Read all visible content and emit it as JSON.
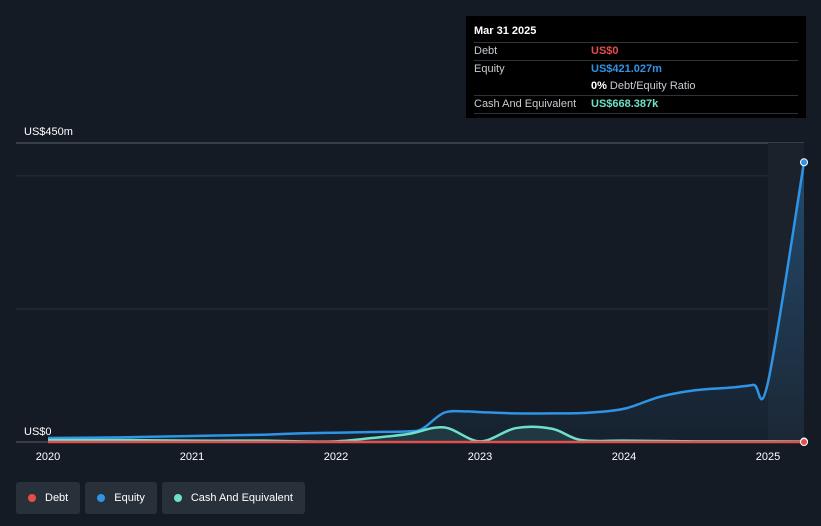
{
  "tooltip": {
    "date": "Mar 31 2025",
    "rows": [
      {
        "label": "Debt",
        "value": "US$0"
      },
      {
        "label": "Equity",
        "value": "US$421.027m"
      },
      {
        "label": "",
        "value": "0%",
        "extra": "Debt/Equity Ratio"
      },
      {
        "label": "Cash And Equivalent",
        "value": "US$668.387k"
      }
    ]
  },
  "legend": [
    {
      "label": "Debt",
      "color": "#e64d4d"
    },
    {
      "label": "Equity",
      "color": "#2f94e6"
    },
    {
      "label": "Cash And Equivalent",
      "color": "#6fe0c8"
    }
  ],
  "chart_data": {
    "type": "area",
    "y_axis_labels": [
      "US$450m",
      "US$0"
    ],
    "ylim": [
      0,
      450
    ],
    "y_unit": "US$m",
    "xlim": [
      2020.0,
      2025.25
    ],
    "x_ticks": [
      {
        "value": 2020,
        "label": "2020"
      },
      {
        "value": 2021,
        "label": "2021"
      },
      {
        "value": 2022,
        "label": "2022"
      },
      {
        "value": 2023,
        "label": "2023"
      },
      {
        "value": 2024,
        "label": "2024"
      },
      {
        "value": 2025,
        "label": "2025"
      }
    ],
    "grid": true,
    "legend_position": "bottom-left",
    "series": [
      {
        "name": "Equity",
        "color": "#2f94e6",
        "x": [
          2020.0,
          2020.5,
          2021.0,
          2021.25,
          2021.5,
          2021.75,
          2022.0,
          2022.25,
          2022.5,
          2022.6,
          2022.75,
          2022.9,
          2023.0,
          2023.25,
          2023.5,
          2023.75,
          2024.0,
          2024.25,
          2024.5,
          2024.75,
          2024.9,
          2025.0,
          2025.25
        ],
        "y": [
          6,
          7,
          9,
          10,
          11,
          13,
          14,
          15,
          16,
          20,
          44,
          46,
          45,
          43,
          43,
          44,
          50,
          68,
          78,
          82,
          86,
          90,
          421
        ]
      },
      {
        "name": "Cash And Equivalent",
        "color": "#6fe0c8",
        "x": [
          2020.0,
          2020.5,
          2021.0,
          2021.25,
          2021.5,
          2021.75,
          2022.0,
          2022.25,
          2022.5,
          2022.75,
          2023.0,
          2023.25,
          2023.5,
          2023.7,
          2024.0,
          2024.5,
          2025.0,
          2025.25
        ],
        "y": [
          3,
          3,
          2,
          2,
          2,
          1,
          1,
          6,
          12,
          22,
          1,
          21,
          20,
          3,
          2,
          1,
          1,
          0.67
        ]
      },
      {
        "name": "Debt",
        "color": "#e64d4d",
        "x": [
          2020.0,
          2025.25
        ],
        "y": [
          0,
          0
        ]
      }
    ]
  }
}
